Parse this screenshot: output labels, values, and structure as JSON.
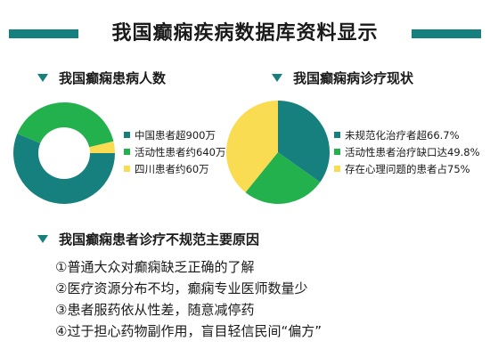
{
  "title": "我国癫痫疾病数据库资料显示",
  "colors": {
    "teal": "#16807e",
    "green": "#22b14c",
    "yellow": "#f9dc51"
  },
  "sections": {
    "patients": "我国癫痫患病人数",
    "treatment": "我国癫痫病诊疗现状",
    "reasons": "我国癫痫患者诊疗不规范主要原因"
  },
  "chart_data": [
    {
      "type": "pie",
      "variant": "donut",
      "title": "我国癫痫患病人数",
      "labels": [
        "中国患者超900万",
        "活动性患者约640万",
        "四川患者约60万"
      ],
      "values": [
        900,
        640,
        60
      ],
      "unit": "万",
      "colors": [
        "#16807e",
        "#22b14c",
        "#f9dc51"
      ],
      "legend_position": "right"
    },
    {
      "type": "pie",
      "title": "我国癫痫病诊疗现状",
      "labels": [
        "未规范化治疗者超66.7%",
        "活动性患者治疗缺口达49.8%",
        "存在心理问题的患者占75%"
      ],
      "values": [
        66.7,
        49.8,
        75
      ],
      "unit": "%",
      "colors": [
        "#16807e",
        "#22b14c",
        "#f9dc51"
      ],
      "legend_position": "right"
    }
  ],
  "reasons": [
    "①普通大众对癫痫缺乏正确的了解",
    "②医疗资源分布不均，癫痫专业医师数量少",
    "③患者服药依从性差，随意减停药",
    "④过于担心药物副作用，盲目轻信民间“偏方”"
  ]
}
